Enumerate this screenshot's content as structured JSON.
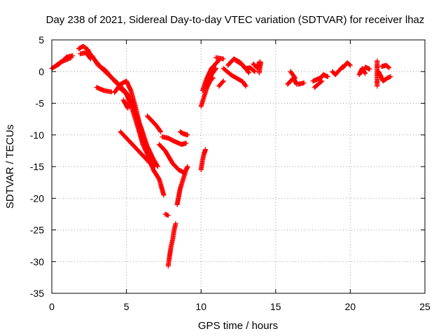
{
  "chart_data": {
    "type": "scatter",
    "title": "Day 238 of 2021, Sidereal Day-to-day VTEC variation (SDTVAR) for receiver lhaz",
    "xlabel": "GPS time / hours",
    "ylabel": "SDTVAR / TECUs",
    "xlim": [
      0,
      25
    ],
    "ylim": [
      -35,
      5
    ],
    "xticks": [
      0,
      5,
      10,
      15,
      20,
      25
    ],
    "yticks": [
      -35,
      -30,
      -25,
      -20,
      -15,
      -10,
      -5,
      0,
      5
    ],
    "grid": true,
    "marker": "+",
    "color": "#ff0000",
    "tracks": [
      [
        [
          0.0,
          0.5
        ],
        [
          0.5,
          1.2
        ],
        [
          1.0,
          2.3
        ],
        [
          1.4,
          2.5
        ]
      ],
      [
        [
          0.2,
          0.8
        ],
        [
          0.6,
          1.5
        ],
        [
          1.1,
          2.0
        ],
        [
          1.3,
          2.2
        ]
      ],
      [
        [
          1.8,
          3.6
        ],
        [
          2.1,
          4.0
        ],
        [
          2.4,
          3.5
        ],
        [
          2.6,
          2.6
        ]
      ],
      [
        [
          1.9,
          2.8
        ],
        [
          2.3,
          3.0
        ],
        [
          2.6,
          2.0
        ]
      ],
      [
        [
          2.7,
          2.5
        ],
        [
          3.1,
          1.0
        ],
        [
          3.6,
          0.2
        ],
        [
          4.2,
          -1.5
        ],
        [
          4.8,
          -2.8
        ],
        [
          5.2,
          -4.0
        ],
        [
          5.6,
          -6.5
        ],
        [
          6.0,
          -9.0
        ],
        [
          6.4,
          -11.8
        ],
        [
          6.8,
          -13.8
        ],
        [
          7.1,
          -15.0
        ]
      ],
      [
        [
          2.9,
          1.8
        ],
        [
          3.3,
          0.6
        ],
        [
          3.8,
          -0.5
        ],
        [
          4.4,
          -1.8
        ],
        [
          4.9,
          -3.2
        ],
        [
          5.3,
          -4.8
        ],
        [
          5.7,
          -7.0
        ],
        [
          6.1,
          -10.0
        ],
        [
          6.5,
          -13.0
        ],
        [
          6.8,
          -15.5
        ],
        [
          7.2,
          -17.0
        ],
        [
          7.5,
          -19.5
        ]
      ],
      [
        [
          3.0,
          -2.5
        ],
        [
          3.5,
          -3.0
        ],
        [
          4.0,
          -3.2
        ]
      ],
      [
        [
          4.2,
          -3.3
        ],
        [
          4.6,
          -2.0
        ],
        [
          5.0,
          -1.5
        ],
        [
          5.3,
          -3.0
        ],
        [
          5.6,
          -5.5
        ],
        [
          5.9,
          -8.5
        ],
        [
          6.2,
          -11.0
        ],
        [
          6.5,
          -13.0
        ],
        [
          6.7,
          -14.0
        ]
      ],
      [
        [
          4.5,
          -2.5
        ],
        [
          5.0,
          -3.5
        ],
        [
          5.4,
          -6.0
        ],
        [
          5.8,
          -9.0
        ],
        [
          6.1,
          -11.5
        ],
        [
          6.5,
          -13.5
        ],
        [
          6.7,
          -15.0
        ]
      ],
      [
        [
          4.8,
          -4.5
        ],
        [
          5.1,
          -5.8
        ]
      ],
      [
        [
          4.6,
          -9.5
        ],
        [
          5.0,
          -10.5
        ],
        [
          5.4,
          -11.5
        ],
        [
          5.8,
          -12.5
        ],
        [
          6.2,
          -13.5
        ],
        [
          6.6,
          -14.5
        ],
        [
          6.9,
          -15.0
        ]
      ],
      [
        [
          6.4,
          -7.0
        ],
        [
          7.0,
          -8.5
        ],
        [
          7.3,
          -9.5
        ]
      ],
      [
        [
          7.2,
          -11.5
        ],
        [
          7.6,
          -12.5
        ],
        [
          8.1,
          -14.5
        ],
        [
          8.5,
          -15.5
        ],
        [
          8.9,
          -16.0
        ]
      ],
      [
        [
          7.4,
          -10.3
        ],
        [
          7.8,
          -10.5
        ],
        [
          8.2,
          -11.0
        ],
        [
          8.7,
          -11.5
        ],
        [
          9.0,
          -11.3
        ]
      ],
      [
        [
          7.6,
          -22.5
        ],
        [
          7.8,
          -22.7
        ]
      ],
      [
        [
          7.8,
          -30.7
        ],
        [
          7.9,
          -29.0
        ],
        [
          8.0,
          -27.5
        ],
        [
          8.1,
          -26.5
        ],
        [
          8.2,
          -25.0
        ],
        [
          8.3,
          -24.0
        ]
      ],
      [
        [
          8.4,
          -21.0
        ],
        [
          8.6,
          -18.5
        ],
        [
          8.8,
          -17.0
        ],
        [
          9.0,
          -15.5
        ],
        [
          9.1,
          -15.0
        ]
      ],
      [
        [
          8.6,
          -9.5
        ],
        [
          8.8,
          -9.8
        ],
        [
          9.1,
          -10.0
        ]
      ],
      [
        [
          10.0,
          -15.5
        ],
        [
          10.1,
          -14.0
        ],
        [
          10.2,
          -13.0
        ],
        [
          10.3,
          -12.3
        ]
      ],
      [
        [
          10.0,
          -5.5
        ],
        [
          10.2,
          -4.0
        ],
        [
          10.4,
          -2.5
        ],
        [
          10.6,
          -1.5
        ],
        [
          10.8,
          -1.0
        ]
      ],
      [
        [
          10.1,
          -3.0
        ],
        [
          10.4,
          -1.0
        ],
        [
          10.7,
          0.5
        ],
        [
          11.0,
          1.3
        ],
        [
          11.2,
          1.8
        ]
      ],
      [
        [
          10.3,
          -2.0
        ],
        [
          10.7,
          -0.5
        ],
        [
          11.0,
          0.5
        ]
      ],
      [
        [
          11.0,
          2.2
        ],
        [
          11.5,
          2.0
        ]
      ],
      [
        [
          11.2,
          -2.3
        ],
        [
          11.5,
          -1.5
        ]
      ],
      [
        [
          11.5,
          0.5
        ],
        [
          12.0,
          -0.5
        ],
        [
          12.5,
          -1.2
        ],
        [
          12.8,
          -1.6
        ],
        [
          13.0,
          -2.3
        ]
      ],
      [
        [
          11.8,
          1.0
        ],
        [
          12.2,
          2.0
        ],
        [
          12.6,
          1.5
        ],
        [
          13.0,
          0.5
        ],
        [
          13.2,
          -0.2
        ]
      ],
      [
        [
          12.3,
          1.8
        ],
        [
          12.7,
          1.2
        ],
        [
          13.0,
          0.4
        ]
      ],
      [
        [
          13.0,
          0.5
        ],
        [
          13.3,
          0.6
        ],
        [
          13.6,
          0.0
        ]
      ],
      [
        [
          13.5,
          1.2
        ],
        [
          13.8,
          0.5
        ],
        [
          13.9,
          1.5
        ]
      ],
      [
        [
          14.0,
          1.5
        ],
        [
          13.9,
          -0.2
        ]
      ],
      [
        [
          15.8,
          -2.0
        ],
        [
          16.2,
          -1.0
        ],
        [
          16.4,
          -2.0
        ]
      ],
      [
        [
          16.0,
          0.0
        ],
        [
          16.3,
          -1.0
        ]
      ],
      [
        [
          16.5,
          -2.0
        ],
        [
          16.9,
          -1.8
        ]
      ],
      [
        [
          17.5,
          -1.5
        ],
        [
          18.0,
          -1.0
        ],
        [
          18.2,
          -0.5
        ]
      ],
      [
        [
          17.6,
          -2.5
        ],
        [
          18.1,
          -1.5
        ]
      ],
      [
        [
          18.2,
          -0.5
        ],
        [
          18.5,
          -0.8
        ]
      ],
      [
        [
          18.8,
          0.0
        ],
        [
          19.0,
          -0.5
        ],
        [
          19.3,
          0.3
        ],
        [
          19.5,
          0.8
        ]
      ],
      [
        [
          19.5,
          0.6
        ],
        [
          19.8,
          1.4
        ],
        [
          20.0,
          1.0
        ]
      ],
      [
        [
          20.6,
          -0.5
        ],
        [
          20.8,
          0.5
        ],
        [
          21.0,
          -0.3
        ]
      ],
      [
        [
          21.0,
          0.7
        ],
        [
          21.3,
          0.4
        ]
      ],
      [
        [
          21.8,
          -2.3
        ],
        [
          21.8,
          1.7
        ]
      ],
      [
        [
          21.9,
          0.0
        ],
        [
          22.2,
          -1.5
        ],
        [
          22.5,
          -1.0
        ],
        [
          22.7,
          -0.8
        ]
      ],
      [
        [
          22.1,
          0.8
        ],
        [
          22.4,
          1.0
        ],
        [
          22.6,
          0.6
        ]
      ]
    ]
  }
}
